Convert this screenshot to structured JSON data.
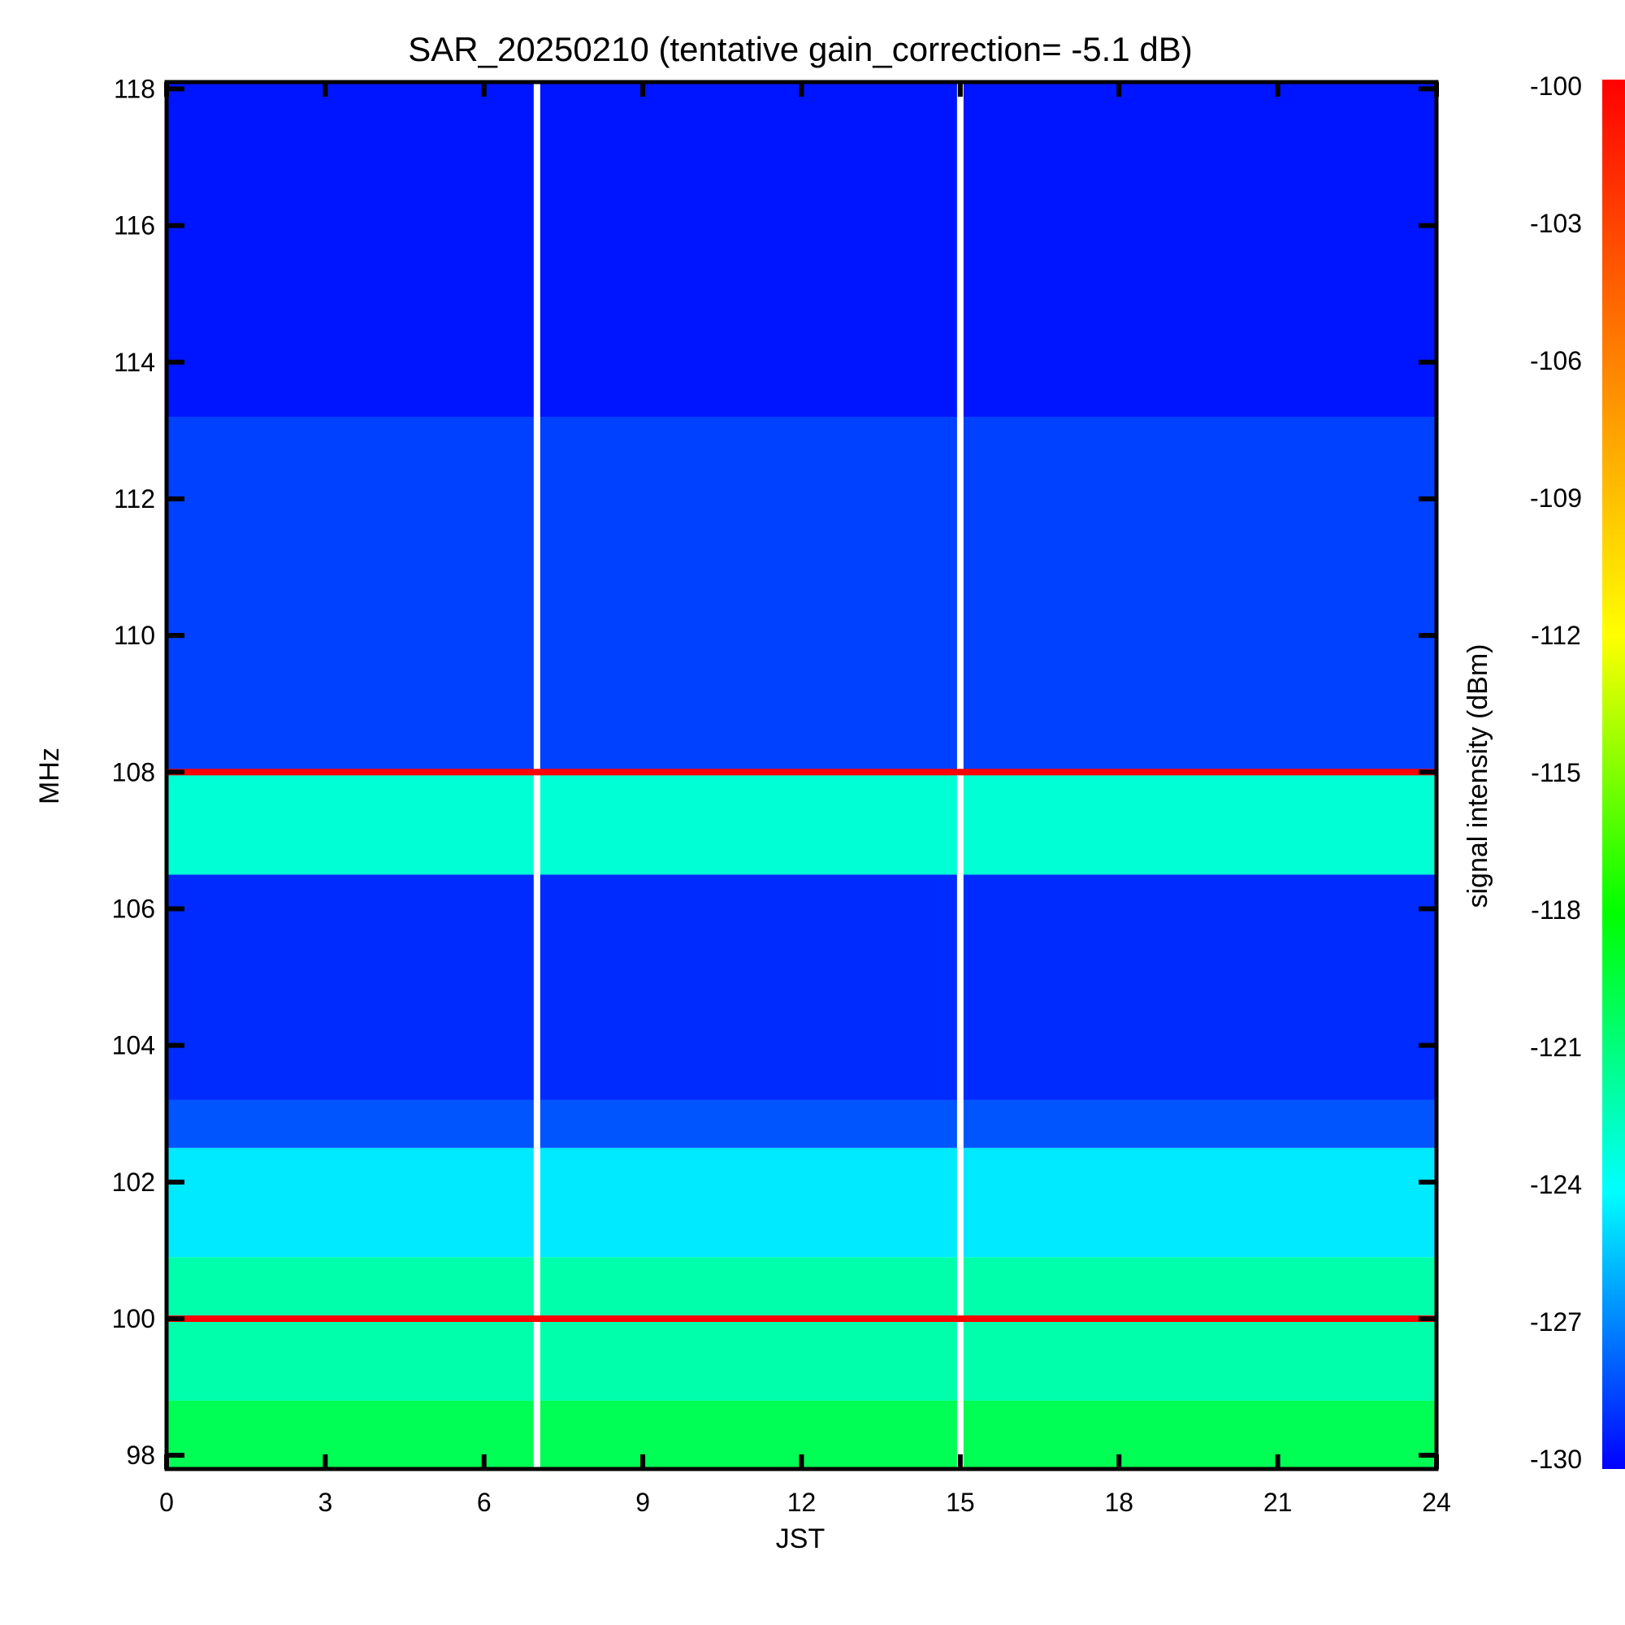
{
  "chart_data": {
    "type": "heatmap",
    "title": "SAR_20250210 (tentative gain_correction= -5.1 dB)",
    "xlabel": "JST",
    "ylabel": "MHz",
    "colorbar_label": "signal intensity (dBm)",
    "xlim": [
      0,
      24
    ],
    "ylim": [
      97.8,
      118.1
    ],
    "x_ticks": [
      0,
      3,
      6,
      9,
      12,
      15,
      18,
      21,
      24
    ],
    "y_ticks": [
      98,
      100,
      102,
      104,
      106,
      108,
      110,
      112,
      114,
      116,
      118
    ],
    "colorbar_range": [
      -130,
      -100
    ],
    "colorbar_ticks": [
      -100,
      -103,
      -106,
      -109,
      -112,
      -115,
      -118,
      -121,
      -124,
      -127,
      -130
    ],
    "colorscale": [
      "#0000ff",
      "#00ffff",
      "#00ff00",
      "#ffff00",
      "#ff8000",
      "#ff0000"
    ],
    "data_gaps_jst": [
      7.0,
      15.0
    ],
    "strong_lines_mhz": [
      {
        "mhz": 100.0,
        "dbm": -100
      },
      {
        "mhz": 108.0,
        "dbm": -100
      }
    ],
    "band_levels": [
      {
        "mhz_from": 97.8,
        "mhz_to": 98.8,
        "dbm": -120
      },
      {
        "mhz_from": 98.8,
        "mhz_to": 100.9,
        "dbm": -122
      },
      {
        "mhz_from": 100.9,
        "mhz_to": 102.5,
        "dbm": -124.5
      },
      {
        "mhz_from": 102.5,
        "mhz_to": 103.2,
        "dbm": -128
      },
      {
        "mhz_from": 103.2,
        "mhz_to": 106.5,
        "dbm": -129
      },
      {
        "mhz_from": 106.5,
        "mhz_to": 108.0,
        "dbm": -123
      },
      {
        "mhz_from": 108.0,
        "mhz_to": 113.2,
        "dbm": -128.5
      },
      {
        "mhz_from": 113.2,
        "mhz_to": 118.1,
        "dbm": -129.5
      }
    ],
    "grid": false
  }
}
